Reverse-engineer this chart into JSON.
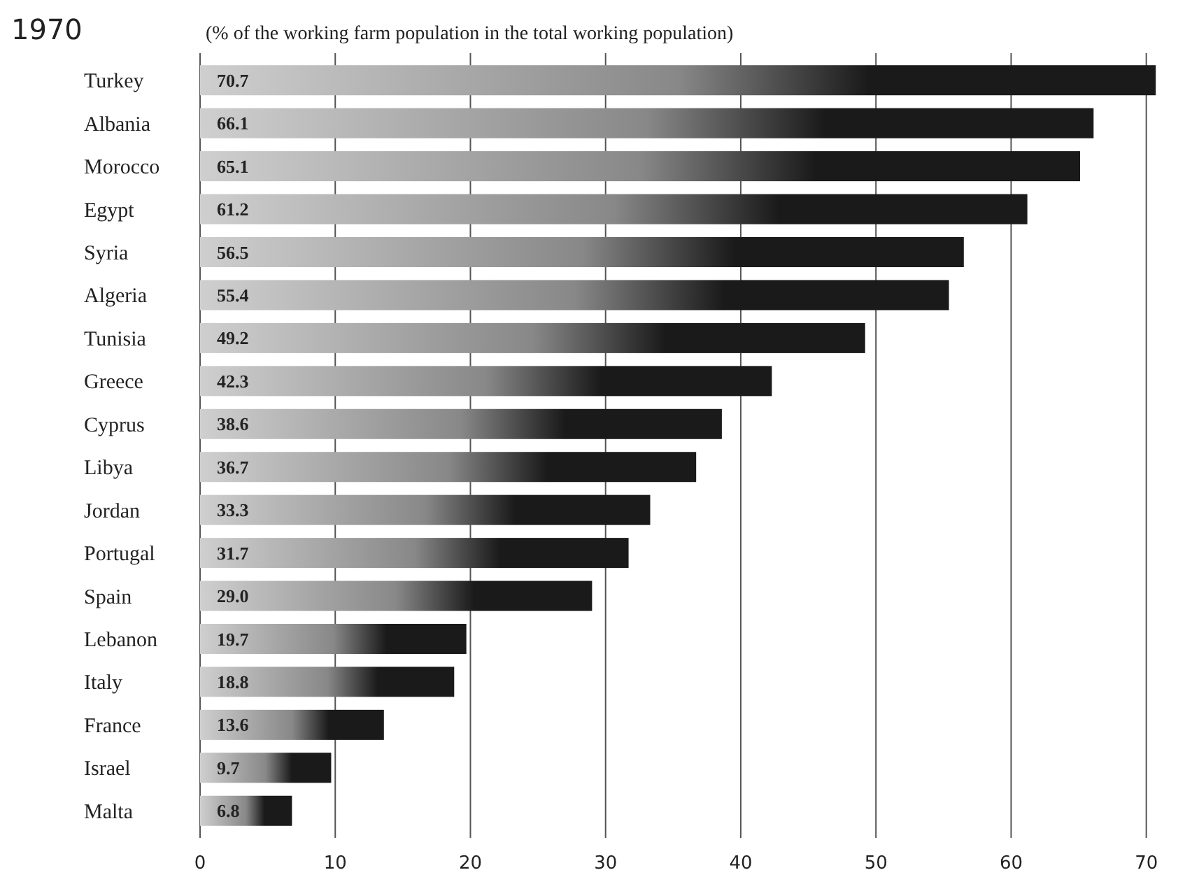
{
  "chart_data": {
    "type": "bar",
    "orientation": "horizontal",
    "title": "1970",
    "subtitle": "(% of the working farm population in the total working population)",
    "categories": [
      "Turkey",
      "Albania",
      "Morocco",
      "Egypt",
      "Syria",
      "Algeria",
      "Tunisia",
      "Greece",
      "Cyprus",
      "Libya",
      "Jordan",
      "Portugal",
      "Spain",
      "Lebanon",
      "Italy",
      "France",
      "Israel",
      "Malta"
    ],
    "values": [
      70.7,
      66.1,
      65.1,
      61.2,
      56.5,
      55.4,
      49.2,
      42.3,
      38.6,
      36.7,
      33.3,
      31.7,
      29.0,
      19.7,
      18.8,
      13.6,
      9.7,
      6.8
    ],
    "color": "#1a1a1a",
    "xlim": [
      0,
      71
    ],
    "xticks": [
      0,
      10,
      20,
      30,
      40,
      50,
      60,
      70
    ],
    "grid": "x",
    "value_labels": [
      "70.7",
      "66.1",
      "65.1",
      "61.2",
      "56.5",
      "55.4",
      "49.2",
      "42.3",
      "38.6",
      "36.7",
      "33.3",
      "31.7",
      "29.0",
      "19.7",
      "18.8",
      "13.6",
      "9.7",
      "6.8"
    ]
  }
}
